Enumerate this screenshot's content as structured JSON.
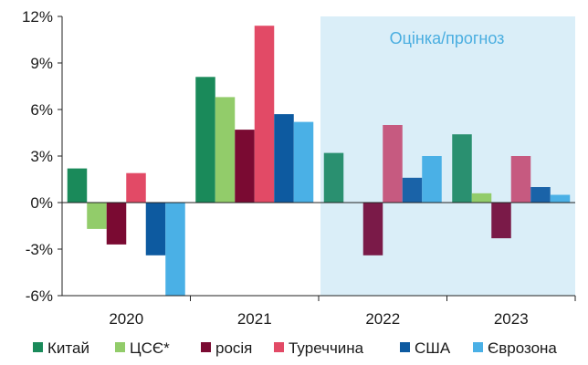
{
  "chart_data": {
    "type": "bar",
    "categories": [
      "2020",
      "2021",
      "2022",
      "2023"
    ],
    "ylim": [
      -6,
      12
    ],
    "yticks": [
      "-6%",
      "-3%",
      "0%",
      "3%",
      "6%",
      "9%",
      "12%"
    ],
    "ytick_values": [
      -6,
      -3,
      0,
      3,
      6,
      9,
      12
    ],
    "forecast_label": "Оцінка/прогноз",
    "forecast_categories": [
      "2022",
      "2023"
    ],
    "forecast_band_color": "#daeef8",
    "grid": "none",
    "legend_position": "bottom",
    "series": [
      {
        "name": "Китай",
        "color": "#1a8a5a",
        "forecast_color": "#2a9070",
        "values": [
          2.2,
          8.1,
          3.2,
          4.4
        ]
      },
      {
        "name": "ЦСЄ*",
        "color": "#92cc6a",
        "forecast_color": "#92cc6a",
        "values": [
          -1.7,
          6.8,
          null,
          0.6
        ]
      },
      {
        "name": "росія",
        "color": "#7a0a32",
        "forecast_color": "#7a1a48",
        "values": [
          -2.7,
          4.7,
          -3.4,
          -2.3
        ]
      },
      {
        "name": "Туреччина",
        "color": "#e24a66",
        "forecast_color": "#c65a80",
        "values": [
          1.9,
          11.4,
          5.0,
          3.0
        ]
      },
      {
        "name": "США",
        "color": "#0d5aa0",
        "forecast_color": "#1a63a8",
        "values": [
          -3.4,
          5.7,
          1.6,
          1.0
        ]
      },
      {
        "name": "Єврозона",
        "color": "#4ab0e6",
        "forecast_color": "#4ab0e6",
        "values": [
          -6.1,
          5.2,
          3.0,
          0.5
        ]
      }
    ]
  }
}
